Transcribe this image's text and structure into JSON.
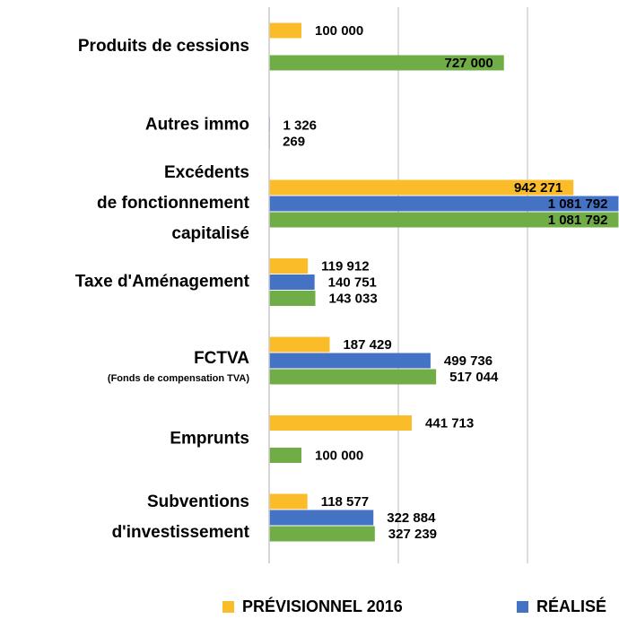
{
  "chart_data": {
    "type": "bar",
    "orientation": "horizontal",
    "categories": [
      [
        "Produits de cessions"
      ],
      [
        "Autres immo"
      ],
      [
        "Excédents",
        "de fonctionnement",
        "capitalisé"
      ],
      [
        "Taxe d'Aménagement"
      ],
      [
        "FCTVA",
        "(Fonds de compensation TVA)"
      ],
      [
        "Emprunts"
      ],
      [
        "Subventions",
        "d'investissement"
      ]
    ],
    "series": [
      {
        "name": "PRÉVISIONNEL 2016",
        "color": "#fbbc2a",
        "values": [
          100000,
          null,
          942271,
          119912,
          187429,
          441713,
          118577
        ],
        "value_labels": [
          "100 000",
          null,
          "942 271",
          "119 912",
          "187 429",
          "441 713",
          "118 577"
        ]
      },
      {
        "name": "RÉALISÉ",
        "color": "#4472c4",
        "values": [
          null,
          1326,
          1081792,
          140751,
          499736,
          null,
          322884
        ],
        "value_labels": [
          null,
          "1 326",
          "1 081 792",
          "140 751",
          "499 736",
          null,
          "322 884"
        ]
      },
      {
        "color": "#70ad47",
        "values": [
          727000,
          269,
          1081792,
          143033,
          517044,
          100000,
          327239
        ],
        "value_labels": [
          "727 000",
          "269",
          "1 081 792",
          "143 033",
          "517 044",
          "100 000",
          "327 239"
        ]
      }
    ],
    "xlim": [
      0,
      1200000
    ],
    "xticks": [
      0,
      400000,
      800000
    ],
    "grid": true
  }
}
